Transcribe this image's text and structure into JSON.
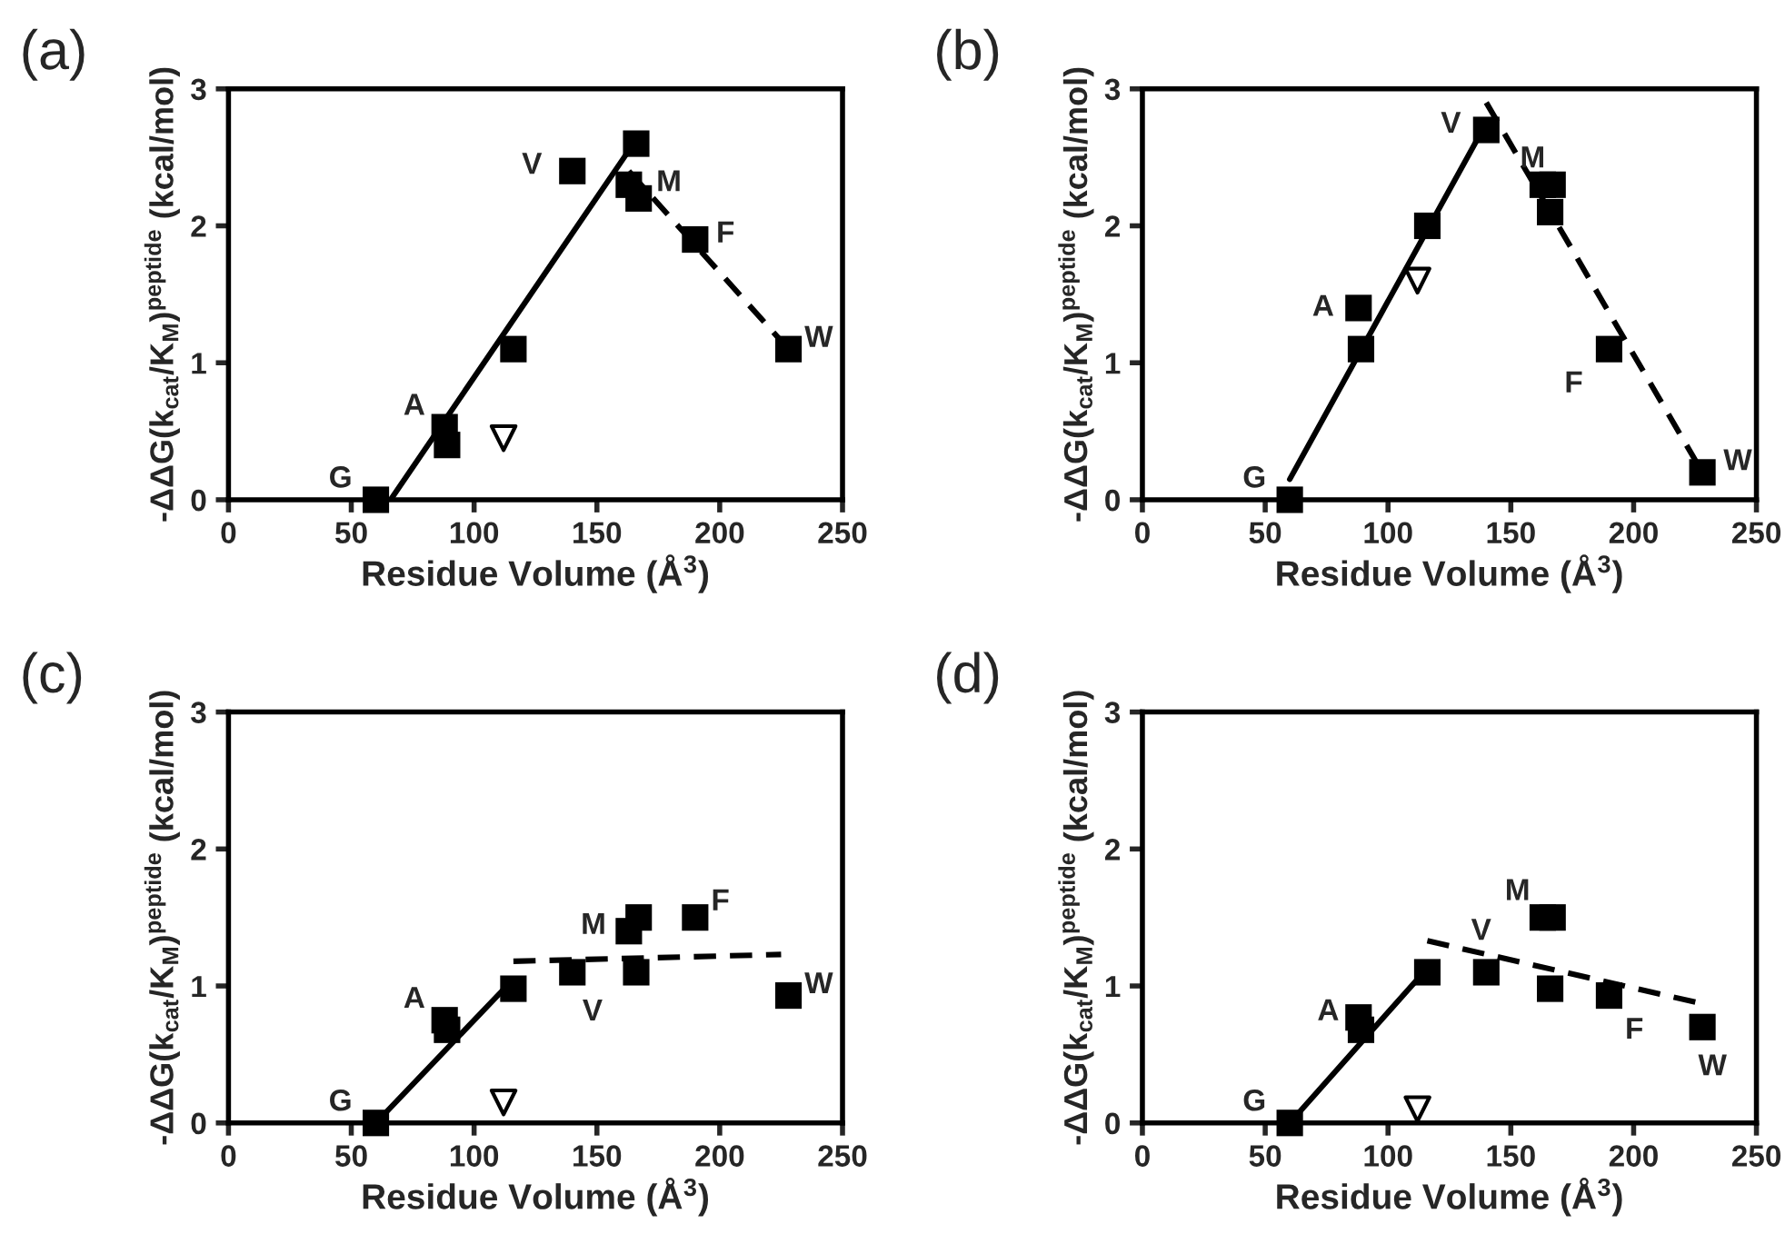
{
  "chart_data": [
    {
      "type": "scatter",
      "title": "(a)",
      "xlabel": "Residue Volume (Å$^{3}$)",
      "ylabel": "-ΔΔG(k$_{cat}$/K$_{M}$)$^{peptide}$ (kcal/mol)",
      "xlim": [
        0,
        250
      ],
      "ylim": [
        0,
        3
      ],
      "xticks": [
        0,
        50,
        100,
        150,
        200,
        250
      ],
      "yticks": [
        0,
        1,
        2,
        3
      ],
      "grid": false,
      "legend": false,
      "series": [
        {
          "marker": "square",
          "color": "#000000",
          "x": [
            60,
            88,
            89,
            116,
            140,
            163,
            166,
            167,
            190,
            228
          ],
          "values": [
            0,
            0.53,
            0.4,
            1.1,
            2.4,
            2.3,
            2.6,
            2.2,
            1.9,
            1.1
          ]
        },
        {
          "marker": "triangle",
          "color": "#000000",
          "x": [
            112
          ],
          "values": [
            0.45
          ]
        },
        {
          "type": "line",
          "line_style": "solid",
          "color": "#000000",
          "x": [
            66,
            163
          ],
          "values": [
            0,
            2.55
          ]
        },
        {
          "type": "line",
          "line_style": "dashed",
          "color": "#000000",
          "x": [
            163,
            228
          ],
          "values": [
            2.4,
            1.1
          ]
        }
      ],
      "annotations": [
        {
          "text": "G",
          "x": 60,
          "y": 0
        },
        {
          "text": "A",
          "x": 88,
          "y": 0.53
        },
        {
          "text": "V",
          "x": 140,
          "y": 2.4
        },
        {
          "text": "M",
          "x": 167,
          "y": 2.2
        },
        {
          "text": "F",
          "x": 190,
          "y": 1.9
        },
        {
          "text": "W",
          "x": 228,
          "y": 1.1
        }
      ]
    },
    {
      "type": "scatter",
      "title": "(b)",
      "xlabel": "Residue Volume (Å$^{3}$)",
      "ylabel": "-ΔΔG(k$_{cat}$/K$_{M}$)$^{peptide}$ (kcal/mol)",
      "xlim": [
        0,
        250
      ],
      "ylim": [
        0,
        3
      ],
      "xticks": [
        0,
        50,
        100,
        150,
        200,
        250
      ],
      "yticks": [
        0,
        1,
        2,
        3
      ],
      "grid": false,
      "legend": false,
      "series": [
        {
          "marker": "square",
          "color": "#000000",
          "x": [
            60,
            88,
            89,
            116,
            140,
            163,
            167,
            166,
            190,
            228
          ],
          "values": [
            0,
            1.4,
            1.1,
            2.0,
            2.7,
            2.3,
            2.3,
            2.1,
            1.1,
            0.2
          ]
        },
        {
          "marker": "triangle",
          "color": "#000000",
          "x": [
            112
          ],
          "values": [
            1.6
          ]
        },
        {
          "type": "line",
          "line_style": "solid",
          "color": "#000000",
          "x": [
            60,
            140
          ],
          "values": [
            0.15,
            2.75
          ]
        },
        {
          "type": "line",
          "line_style": "dashed",
          "color": "#000000",
          "x": [
            140,
            228
          ],
          "values": [
            2.9,
            0.2
          ]
        }
      ],
      "annotations": [
        {
          "text": "G",
          "x": 60,
          "y": 0
        },
        {
          "text": "A",
          "x": 88,
          "y": 1.4
        },
        {
          "text": "V",
          "x": 140,
          "y": 2.7
        },
        {
          "text": "M",
          "x": 163,
          "y": 2.3
        },
        {
          "text": "F",
          "x": 190,
          "y": 1.1
        },
        {
          "text": "W",
          "x": 228,
          "y": 0.2
        }
      ]
    },
    {
      "type": "scatter",
      "title": "(c)",
      "xlabel": "Residue Volume (Å$^{3}$)",
      "ylabel": "-ΔΔG(k$_{cat}$/K$_{M}$)$^{peptide}$ (kcal/mol)",
      "xlim": [
        0,
        250
      ],
      "ylim": [
        0,
        3
      ],
      "xticks": [
        0,
        50,
        100,
        150,
        200,
        250
      ],
      "yticks": [
        0,
        1,
        2,
        3
      ],
      "grid": false,
      "legend": false,
      "series": [
        {
          "marker": "square",
          "color": "#000000",
          "x": [
            60,
            88,
            89,
            116,
            140,
            163,
            167,
            166,
            190,
            228
          ],
          "values": [
            0,
            0.75,
            0.68,
            0.98,
            1.1,
            1.4,
            1.5,
            1.1,
            1.5,
            0.93
          ]
        },
        {
          "marker": "triangle",
          "color": "#000000",
          "x": [
            112
          ],
          "values": [
            0.15
          ]
        },
        {
          "type": "line",
          "line_style": "solid",
          "color": "#000000",
          "x": [
            60,
            116
          ],
          "values": [
            0,
            1.05
          ]
        },
        {
          "type": "line",
          "line_style": "dashed",
          "color": "#000000",
          "x": [
            116,
            225
          ],
          "values": [
            1.18,
            1.23
          ]
        }
      ],
      "annotations": [
        {
          "text": "G",
          "x": 60,
          "y": 0
        },
        {
          "text": "A",
          "x": 88,
          "y": 0.75
        },
        {
          "text": "V",
          "x": 140,
          "y": 1.1
        },
        {
          "text": "M",
          "x": 163,
          "y": 1.4
        },
        {
          "text": "F",
          "x": 190,
          "y": 1.5
        },
        {
          "text": "W",
          "x": 228,
          "y": 0.93
        }
      ]
    },
    {
      "type": "scatter",
      "title": "(d)",
      "xlabel": "Residue Volume (Å$^{3}$)",
      "ylabel": "-ΔΔG(k$_{cat}$/K$_{M}$)$^{peptide}$ (kcal/mol)",
      "xlim": [
        0,
        250
      ],
      "ylim": [
        0,
        3
      ],
      "xticks": [
        0,
        50,
        100,
        150,
        200,
        250
      ],
      "yticks": [
        0,
        1,
        2,
        3
      ],
      "grid": false,
      "legend": false,
      "series": [
        {
          "marker": "square",
          "color": "#000000",
          "x": [
            60,
            88,
            89,
            116,
            140,
            163,
            167,
            166,
            190,
            228
          ],
          "values": [
            0,
            0.77,
            0.68,
            1.1,
            1.1,
            1.5,
            1.5,
            0.98,
            0.93,
            0.7
          ]
        },
        {
          "marker": "triangle",
          "color": "#000000",
          "x": [
            112
          ],
          "values": [
            0.1
          ]
        },
        {
          "type": "line",
          "line_style": "solid",
          "color": "#000000",
          "x": [
            60,
            116
          ],
          "values": [
            0,
            1.13
          ]
        },
        {
          "type": "line",
          "line_style": "dashed",
          "color": "#000000",
          "x": [
            116,
            228
          ],
          "values": [
            1.33,
            0.87
          ]
        }
      ],
      "annotations": [
        {
          "text": "G",
          "x": 60,
          "y": 0
        },
        {
          "text": "A",
          "x": 88,
          "y": 0.77
        },
        {
          "text": "V",
          "x": 140,
          "y": 1.1
        },
        {
          "text": "M",
          "x": 163,
          "y": 1.5
        },
        {
          "text": "F",
          "x": 190,
          "y": 0.93
        },
        {
          "text": "W",
          "x": 228,
          "y": 0.7
        }
      ]
    }
  ]
}
